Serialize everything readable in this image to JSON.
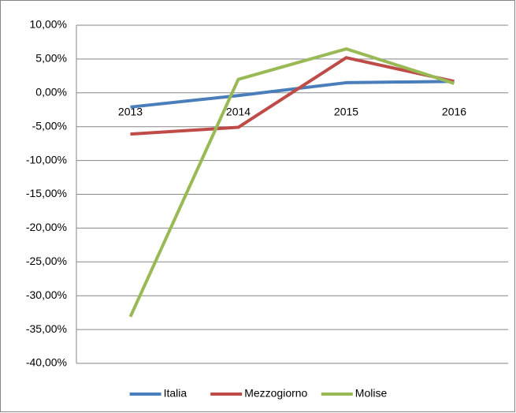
{
  "chart_data": {
    "type": "line",
    "categories": [
      "2013",
      "2014",
      "2015",
      "2016"
    ],
    "series": [
      {
        "name": "Italia",
        "color": "#4a7ebb",
        "values": [
          -2.1,
          -0.4,
          1.5,
          1.7
        ]
      },
      {
        "name": "Mezzogiorno",
        "color": "#be4b48",
        "values": [
          -6.1,
          -5.1,
          5.2,
          1.7
        ]
      },
      {
        "name": "Molise",
        "color": "#98b954",
        "values": [
          -33.1,
          2.0,
          6.5,
          1.4
        ]
      }
    ],
    "ylim": [
      -40,
      10
    ],
    "yticks": [
      {
        "value": 10,
        "label": "10,00%"
      },
      {
        "value": 5,
        "label": "5,00%"
      },
      {
        "value": 0,
        "label": "0,00%"
      },
      {
        "value": -5,
        "label": "-5,00%"
      },
      {
        "value": -10,
        "label": "-10,00%"
      },
      {
        "value": -15,
        "label": "-15,00%"
      },
      {
        "value": -20,
        "label": "-20,00%"
      },
      {
        "value": -25,
        "label": "-25,00%"
      },
      {
        "value": -30,
        "label": "-30,00%"
      },
      {
        "value": -35,
        "label": "-35,00%"
      },
      {
        "value": -40,
        "label": "-40,00%"
      }
    ],
    "grid": true,
    "legend": "bottom"
  }
}
